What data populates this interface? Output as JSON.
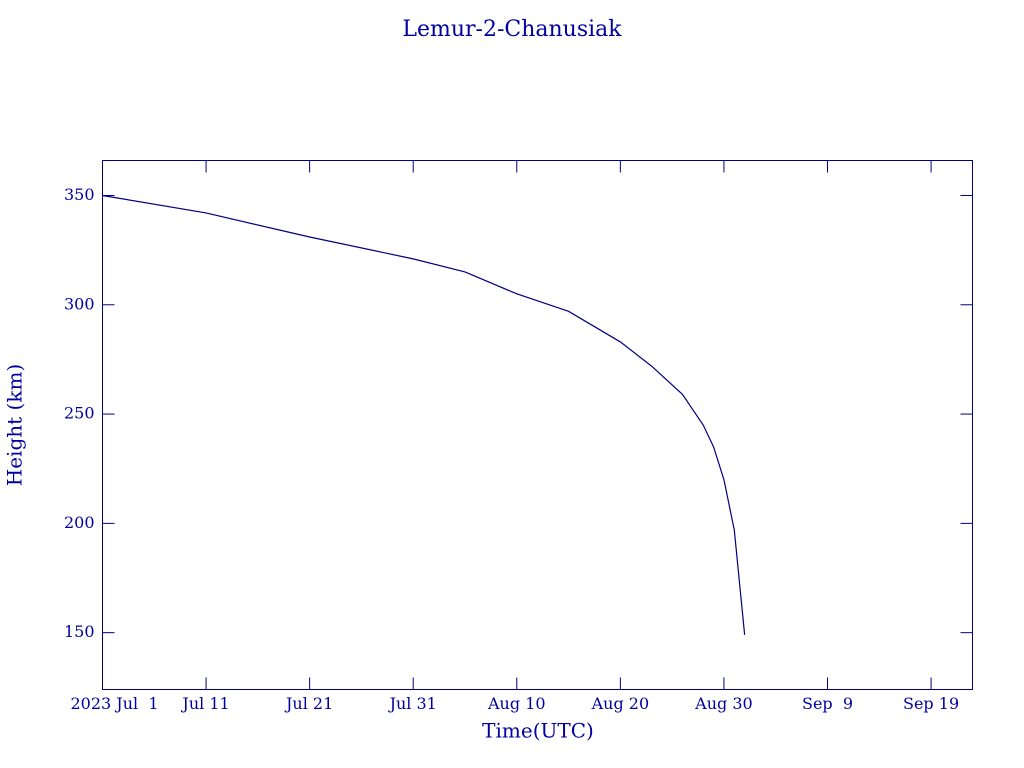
{
  "chart_data": {
    "type": "line",
    "title": "Lemur-2-Chanusiak",
    "x_label": "Time(UTC)",
    "y_label": "Height (km)",
    "x": [
      "2023-07-01",
      "2023-07-11",
      "2023-07-21",
      "2023-07-31",
      "2023-08-05",
      "2023-08-10",
      "2023-08-15",
      "2023-08-20",
      "2023-08-23",
      "2023-08-26",
      "2023-08-28",
      "2023-08-29",
      "2023-08-30",
      "2023-08-31",
      "2023-09-01"
    ],
    "series": [
      {
        "name": "Lemur-2-Chanusiak",
        "color": "#000080",
        "values": [
          350,
          342,
          331,
          321,
          315,
          305,
          297,
          283,
          272,
          259,
          245,
          235,
          220,
          197,
          149
        ]
      }
    ],
    "xlim": [
      "2023-07-01",
      "2023-09-23"
    ],
    "xticks": [
      {
        "value": "2023-07-01",
        "label": "2023 Jul  1"
      },
      {
        "value": "2023-07-11",
        "label": "Jul 11"
      },
      {
        "value": "2023-07-21",
        "label": "Jul 21"
      },
      {
        "value": "2023-07-31",
        "label": "Jul 31"
      },
      {
        "value": "2023-08-10",
        "label": "Aug 10"
      },
      {
        "value": "2023-08-20",
        "label": "Aug 20"
      },
      {
        "value": "2023-08-30",
        "label": "Aug 30"
      },
      {
        "value": "2023-09-09",
        "label": "Sep  9"
      },
      {
        "value": "2023-09-19",
        "label": "Sep 19"
      }
    ],
    "ylim": [
      124,
      366
    ],
    "yticks": [
      150,
      200,
      250,
      300,
      350
    ]
  }
}
